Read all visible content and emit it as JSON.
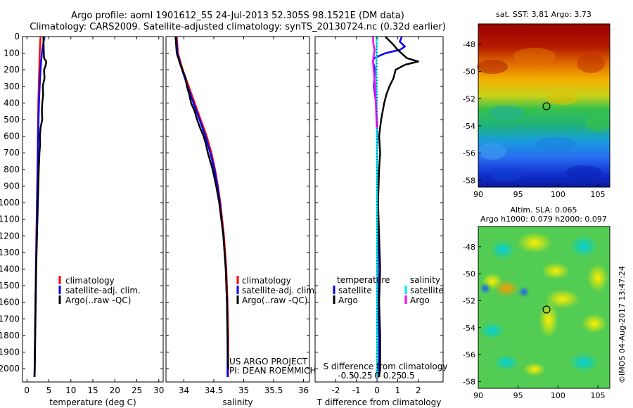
{
  "title": {
    "line1": "Argo profile: aoml 1901612_55 24-Jul-2013 52.305S 98.1521E (DM data)",
    "line2": "Climatology: CARS2009. Satellite-adjusted climatology: synTS_20130724.nc (0.32d earlier)"
  },
  "colors": {
    "climatology": "#ff0000",
    "satellite": "#0000ff",
    "argo": "#000000",
    "salinity_satellite": "#00e5ee",
    "salinity_argo": "#ff00ff"
  },
  "legend": {
    "climatology": "climatology",
    "satellite_adj": "satellite-adj. clim.",
    "argo_raw": "Argo(..raw -QC)",
    "temperature_header": "temperature",
    "salinity_header": "salinity",
    "satellite": "satellite",
    "argo": "Argo"
  },
  "credits": {
    "project": "US ARGO PROJECT",
    "pi": "PI: DEAN ROEMMICH"
  },
  "map_titles": {
    "sst": "sat. SST: 3.81  Argo: 3.73",
    "sla1": "Altim. SLA: 0.065",
    "sla2": "Argo h1000: 0.079 h2000: 0.097"
  },
  "timestamp": "©IMOS 04-Aug-2017 13:47:24",
  "chart_data": [
    {
      "type": "line",
      "name": "temperature profile",
      "xlabel": "temperature (deg C)",
      "ylabel": "",
      "xlim": [
        -1,
        31
      ],
      "ylim": [
        2080,
        0
      ],
      "xticks": [
        0,
        5,
        10,
        15,
        20,
        25,
        30
      ],
      "yticks": [
        0,
        100,
        200,
        300,
        400,
        500,
        600,
        700,
        800,
        900,
        1000,
        1100,
        1200,
        1300,
        1400,
        1500,
        1600,
        1700,
        1800,
        1900,
        2000
      ],
      "series": [
        {
          "name": "climatology",
          "color": "#ff0000",
          "depth": [
            0,
            100,
            200,
            300,
            400,
            500,
            600,
            800,
            1000,
            1200,
            1400,
            1600,
            1800,
            2000,
            2050
          ],
          "values": [
            3.1,
            2.9,
            2.8,
            2.7,
            2.6,
            2.55,
            2.5,
            2.4,
            2.3,
            2.15,
            2.05,
            1.95,
            1.85,
            1.75,
            1.7
          ]
        },
        {
          "name": "satellite-adj. clim.",
          "color": "#0000ff",
          "depth": [
            0,
            60,
            100,
            200,
            300,
            400,
            500,
            600,
            800,
            1000,
            1200,
            1400,
            1600,
            1800,
            2000,
            2050
          ],
          "values": [
            4.0,
            3.6,
            3.4,
            3.1,
            2.9,
            2.75,
            2.65,
            2.55,
            2.45,
            2.3,
            2.2,
            2.05,
            1.95,
            1.85,
            1.75,
            1.7
          ]
        },
        {
          "name": "Argo(..raw -QC)",
          "color": "#000000",
          "depth": [
            0,
            50,
            100,
            130,
            150,
            180,
            200,
            250,
            300,
            350,
            400,
            450,
            500,
            550,
            600,
            650,
            700,
            800,
            900,
            1000,
            1200,
            1400,
            1600,
            1800,
            2000,
            2050
          ],
          "values": [
            3.75,
            3.8,
            3.85,
            3.9,
            4.4,
            4.2,
            3.9,
            4.0,
            3.6,
            3.7,
            3.5,
            3.4,
            3.5,
            3.1,
            2.95,
            3.0,
            2.85,
            2.7,
            2.6,
            2.5,
            2.3,
            2.1,
            2.0,
            1.9,
            1.8,
            1.75
          ]
        }
      ]
    },
    {
      "type": "line",
      "name": "salinity profile",
      "xlabel": "salinity",
      "ylabel": "",
      "xlim": [
        33.7,
        36.1
      ],
      "ylim": [
        2080,
        0
      ],
      "xticks": [
        34,
        34.5,
        35,
        35.5,
        36
      ],
      "series": [
        {
          "name": "climatology",
          "color": "#ff0000",
          "depth": [
            0,
            100,
            200,
            300,
            400,
            500,
            600,
            700,
            800,
            900,
            1000,
            1200,
            1400,
            1600,
            1800,
            2000,
            2050
          ],
          "values": [
            33.88,
            33.9,
            33.98,
            34.08,
            34.18,
            34.28,
            34.38,
            34.46,
            34.52,
            34.57,
            34.61,
            34.67,
            34.71,
            34.73,
            34.74,
            34.74,
            34.74
          ]
        },
        {
          "name": "satellite-adj. clim.",
          "color": "#0000ff",
          "depth": [
            0,
            100,
            200,
            300,
            400,
            500,
            600,
            700,
            800,
            900,
            1000,
            1200,
            1400,
            1600,
            1800,
            2000,
            2050
          ],
          "values": [
            33.87,
            33.89,
            33.97,
            34.06,
            34.16,
            34.26,
            34.36,
            34.44,
            34.51,
            34.56,
            34.6,
            34.66,
            34.7,
            34.72,
            34.73,
            34.73,
            34.73
          ]
        },
        {
          "name": "Argo(..raw -QC)",
          "color": "#000000",
          "depth": [
            0,
            100,
            180,
            250,
            300,
            350,
            400,
            450,
            500,
            550,
            600,
            650,
            700,
            800,
            900,
            1000,
            1200,
            1400,
            1600,
            1800,
            2000
          ],
          "values": [
            33.86,
            33.88,
            33.95,
            34.03,
            34.05,
            34.09,
            34.12,
            34.18,
            34.22,
            34.27,
            34.33,
            34.37,
            34.4,
            34.48,
            34.54,
            34.59,
            34.66,
            34.7,
            34.72,
            34.73,
            34.74
          ]
        }
      ]
    },
    {
      "type": "line",
      "name": "difference from climatology",
      "xlabel": "T difference from climatology",
      "xlabel2": "S difference from climatology",
      "ylabel": "",
      "xlim": [
        -3,
        3.2
      ],
      "ylim": [
        2080,
        0
      ],
      "xticks": [
        -2,
        -1,
        0,
        1,
        2
      ],
      "xticks2_labels": [
        "-0.5",
        "-0.25",
        "0",
        "0.25",
        "0.5"
      ],
      "series": [
        {
          "name": "temperature satellite",
          "color": "#0000ff",
          "depth": [
            0,
            30,
            60,
            80,
            100,
            130,
            150,
            200,
            300,
            400,
            500,
            600,
            800,
            1000,
            1200,
            1400,
            1600,
            1800,
            2000,
            2050
          ],
          "values": [
            1.2,
            1.1,
            1.35,
            1.1,
            0.4,
            -0.15,
            -0.2,
            -0.1,
            -0.15,
            -0.05,
            0.0,
            0.0,
            0.0,
            0.05,
            0.05,
            0.05,
            0.05,
            0.1,
            0.1,
            0.1
          ]
        },
        {
          "name": "temperature Argo",
          "color": "#000000",
          "depth": [
            0,
            50,
            80,
            130,
            150,
            170,
            200,
            250,
            300,
            350,
            400,
            500,
            600,
            700,
            800,
            1000,
            1200,
            1400,
            1600,
            1800,
            2000,
            2050
          ],
          "values": [
            0.4,
            0.8,
            1.0,
            1.45,
            2.0,
            1.35,
            0.9,
            0.8,
            0.6,
            0.45,
            0.35,
            0.2,
            0.1,
            0.15,
            0.1,
            0.05,
            0.1,
            0.15,
            0.1,
            0.15,
            0.15,
            0.1
          ]
        },
        {
          "name": "salinity satellite",
          "color": "#00e5ee",
          "depth": [
            0,
            100,
            200,
            300,
            400,
            600,
            800,
            1000,
            1200,
            1400,
            1600,
            1800,
            2000,
            2050
          ],
          "values": [
            -0.02,
            -0.03,
            -0.04,
            -0.03,
            -0.02,
            -0.01,
            0.0,
            0.0,
            0.0,
            0.0,
            0.0,
            0.0,
            0.0,
            0.0
          ]
        },
        {
          "name": "salinity Argo",
          "color": "#ff00ff",
          "depth": [
            0,
            40,
            80,
            150,
            200,
            300,
            400,
            500,
            550
          ],
          "values": [
            -0.2,
            -0.18,
            -0.12,
            -0.2,
            -0.16,
            -0.1,
            -0.06,
            -0.03,
            -0.01
          ]
        }
      ]
    },
    {
      "type": "heatmap",
      "name": "satellite SST map",
      "xticks": [
        90,
        95,
        100,
        105
      ],
      "yticks": [
        -48,
        -50,
        -52,
        -54,
        -56,
        -58
      ],
      "xlim": [
        90,
        106.5
      ],
      "ylim": [
        -58.5,
        -46.5
      ],
      "marker": {
        "lon": 98.15,
        "lat": -52.3
      }
    },
    {
      "type": "heatmap",
      "name": "altimetry SLA map",
      "xticks": [
        90,
        95,
        100,
        105
      ],
      "yticks": [
        -48,
        -50,
        -52,
        -54,
        -56,
        -58
      ],
      "xlim": [
        90,
        106.5
      ],
      "ylim": [
        -58.5,
        -46.5
      ],
      "marker": {
        "lon": 98.15,
        "lat": -52.3
      }
    }
  ]
}
